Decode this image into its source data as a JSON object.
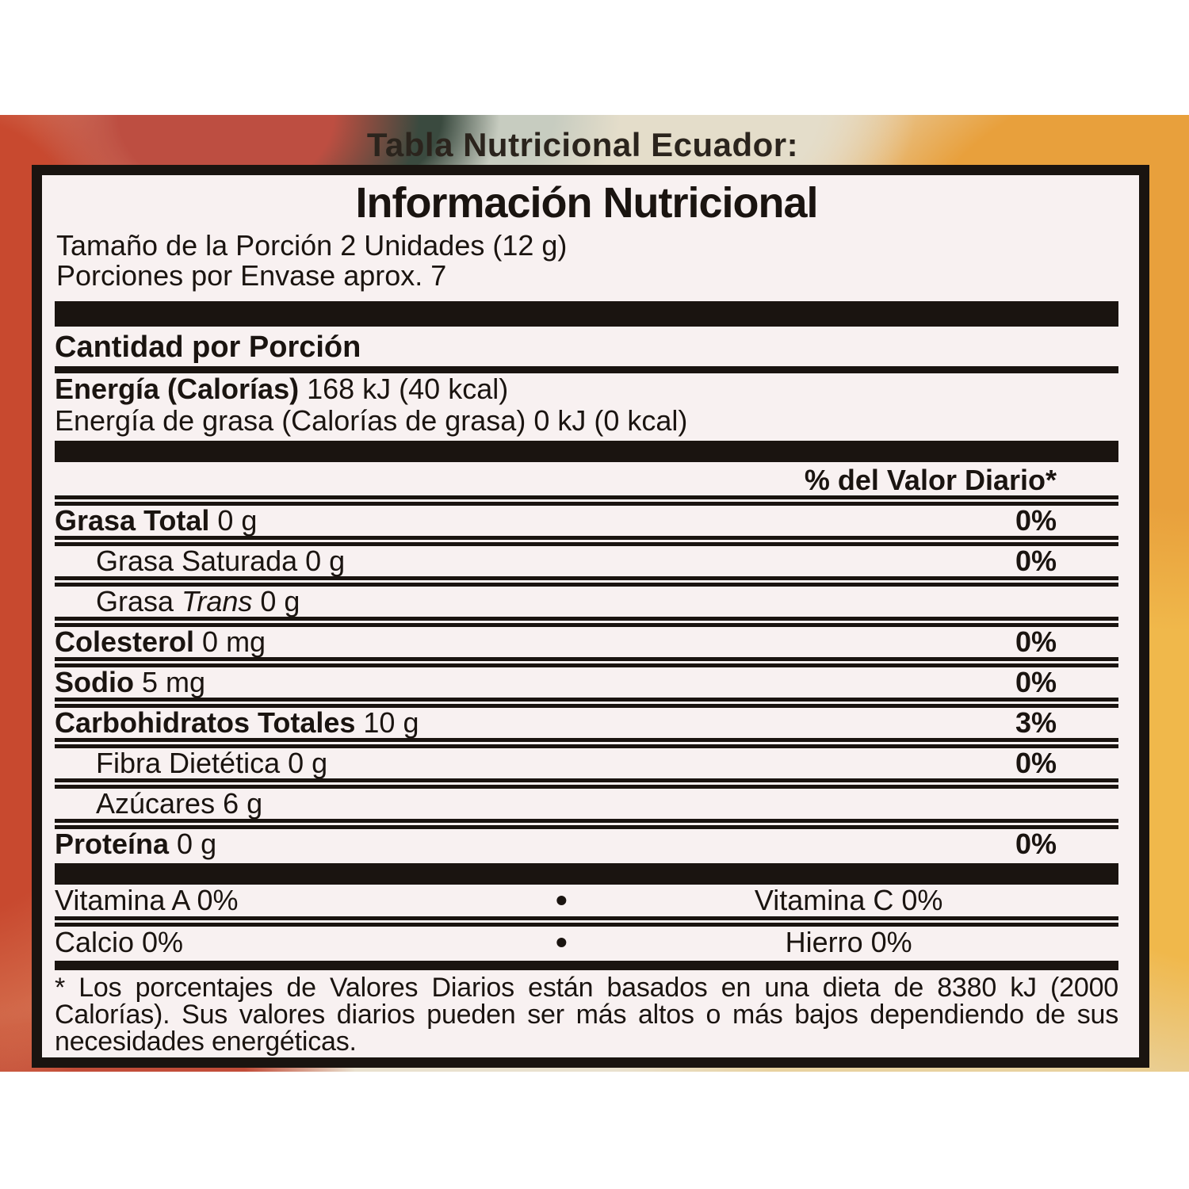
{
  "page": {
    "top_title": "Tabla Nutricional Ecuador:"
  },
  "panel": {
    "header": "Información Nutricional",
    "serving_size": "Tamaño de la Porción 2 Unidades (12 g)",
    "servings_per_container": "Porciones por Envase aprox. 7",
    "amount_per_serving": "Cantidad por Porción",
    "energy": {
      "bold": "Energía (Calorías)",
      "rest": " 168 kJ (40 kcal)"
    },
    "energy_fat": "Energía de grasa (Calorías de grasa) 0 kJ (0 kcal)",
    "dv_heading": "% del Valor Diario*",
    "rows": [
      {
        "b": "Grasa Total",
        "r2": " 0 g",
        "dv": "0%"
      },
      {
        "r2": "Grasa Saturada 0 g",
        "dv": "0%"
      },
      {
        "r1": "Grasa ",
        "i": "Trans",
        "r2": " 0 g"
      },
      {
        "b": "Colesterol",
        "r2": " 0 mg",
        "dv": "0%"
      },
      {
        "b": "Sodio",
        "r2": " 5 mg",
        "dv": "0%"
      },
      {
        "b": "Carbohidratos Totales",
        "r2": " 10 g",
        "dv": "3%"
      },
      {
        "r2": "Fibra Dietética 0 g",
        "dv": "0%"
      },
      {
        "r2": "Azúcares 6 g"
      },
      {
        "b": "Proteína",
        "r2": " 0 g",
        "dv": "0%"
      }
    ],
    "vitamins": [
      {
        "left": "Vitamina A 0%",
        "bullet": "•",
        "right": "Vitamina C 0%"
      },
      {
        "left": "Calcio 0%",
        "bullet": "•",
        "right": "Hierro 0%"
      }
    ],
    "footnote": [
      "* Los porcentajes de Valores Diarios están basados en una dieta de 8380 kJ (2000",
      "Calorías). Sus valores diarios pueden ser más altos o más bajos dependiendo de sus",
      "necesidades energéticas."
    ]
  },
  "colors": {
    "ink": "#1a1410",
    "label_background": "#f8f1f1",
    "photo_cream": "#e9e1cf",
    "photo_red": "#c8492f",
    "photo_orange": "#e8a03c",
    "photo_yellow": "#f0b84b",
    "photo_green": "#3a4a3f"
  }
}
